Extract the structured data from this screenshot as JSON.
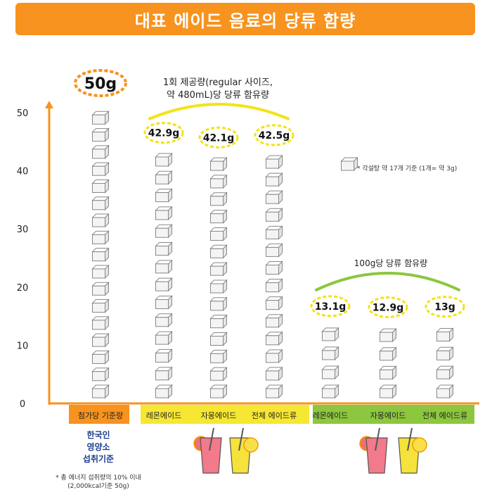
{
  "header": {
    "title": "대표 에이드 음료의 당류 함량"
  },
  "chart_data": {
    "type": "bar",
    "unit_note": "* 각설탕 약 17개 기준 (1개= 약 3g)",
    "y_ticks": [
      "0",
      "10",
      "20",
      "30",
      "40",
      "50"
    ],
    "ylim": [
      0,
      50
    ],
    "cube_grams": 3,
    "reference": {
      "category": "첨가당 기준량",
      "value": 50,
      "label": "50g",
      "color": "#f7931e"
    },
    "groups": [
      {
        "title": "1회 제공량(regular 사이즈,",
        "title2": "약 480mL)당 당류 함유량",
        "arc_color": "#f2e317",
        "band_color": "#f6e733",
        "categories": [
          "레몬에이드",
          "자몽에이드",
          "전체 에이드류"
        ],
        "values": [
          42.9,
          42.1,
          42.5
        ],
        "labels": [
          "42.9g",
          "42.1g",
          "42.5g"
        ]
      },
      {
        "title": "100g당 당류 함유량",
        "title2": "",
        "arc_color": "#8dc63f",
        "band_color": "#8dc63f",
        "categories": [
          "레몬에이드",
          "자몽에이드",
          "전체 에이드류"
        ],
        "values": [
          13.1,
          12.9,
          13
        ],
        "labels": [
          "13.1g",
          "12.9g",
          "13g"
        ]
      }
    ]
  },
  "side_note": {
    "line1": "한국인",
    "line2": "영양소",
    "line3": "섭취기준",
    "foot1": "* 총 에너지 섭취량의 10% 이내",
    "foot2": "(2,000kcal기준 50g)"
  },
  "colors": {
    "axis": "#f7931e",
    "cube_stroke": "#888888",
    "label_ring": "#f2e317"
  }
}
